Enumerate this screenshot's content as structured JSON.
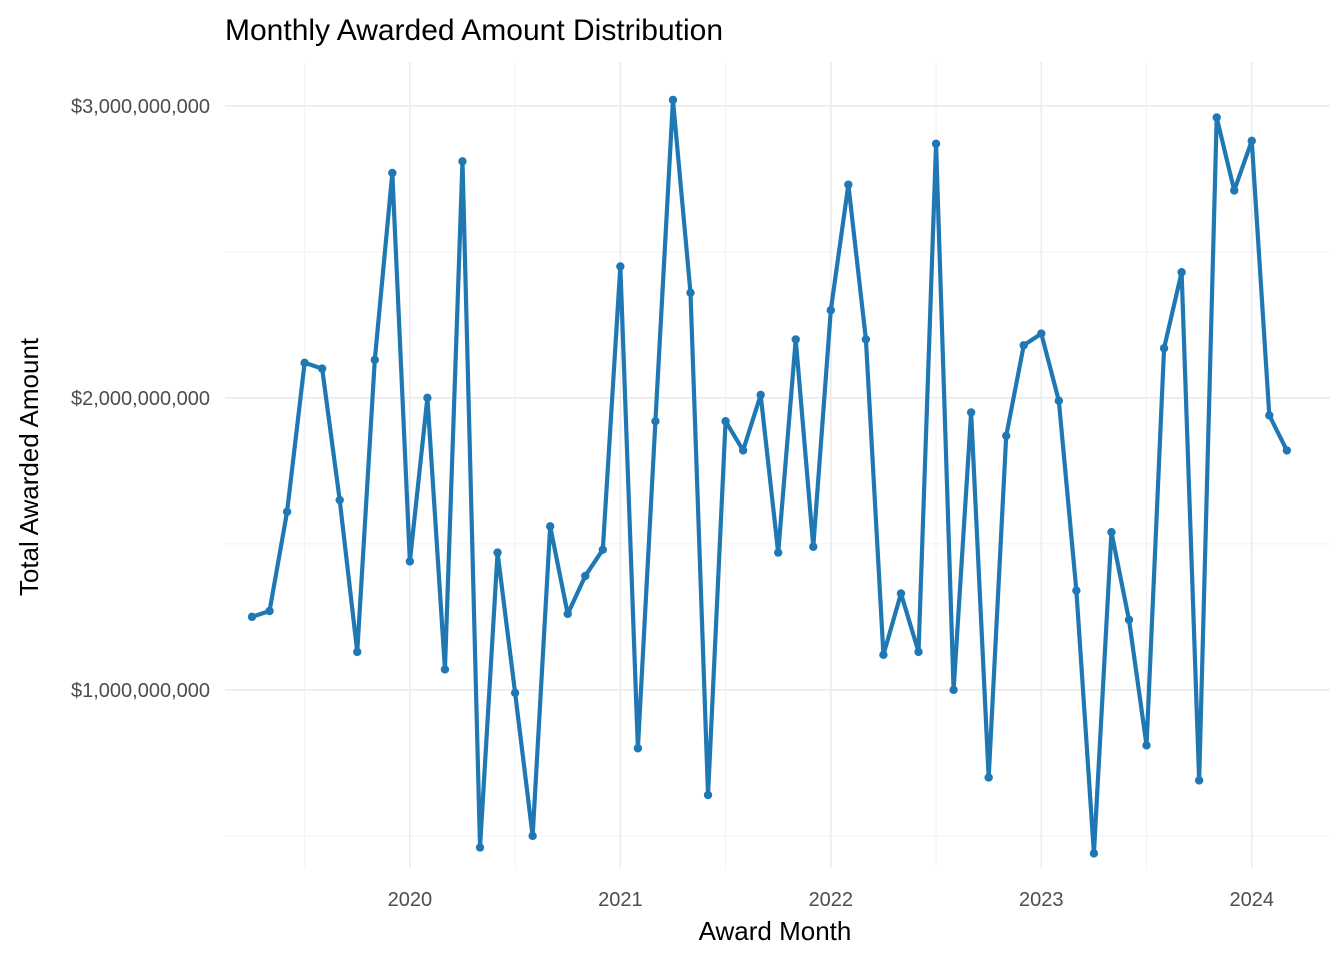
{
  "chart_data": {
    "type": "line",
    "title": "Monthly Awarded Amount Distribution",
    "xlabel": "Award Month",
    "ylabel": "Total Awarded Amount",
    "x_ticks": [
      "2020",
      "2021",
      "2022",
      "2023",
      "2024"
    ],
    "y_ticks": [
      "$1,000,000,000",
      "$2,000,000,000",
      "$3,000,000,000"
    ],
    "y_tick_values": [
      1000000000,
      2000000000,
      3000000000
    ],
    "ylim": [
      390000000,
      3150000000
    ],
    "xlim": [
      "2019-02-15",
      "2024-05-15"
    ],
    "grid": true,
    "legend": "none",
    "color": "#1f78b4",
    "series": [
      {
        "x": [
          "2019-04",
          "2019-05",
          "2019-06",
          "2019-07",
          "2019-08",
          "2019-09",
          "2019-10",
          "2019-11",
          "2019-12",
          "2020-01",
          "2020-02",
          "2020-03",
          "2020-04",
          "2020-05",
          "2020-06",
          "2020-07",
          "2020-08",
          "2020-09",
          "2020-10",
          "2020-11",
          "2020-12",
          "2021-01",
          "2021-02",
          "2021-03",
          "2021-04",
          "2021-05",
          "2021-06",
          "2021-07",
          "2021-08",
          "2021-09",
          "2021-10",
          "2021-11",
          "2021-12",
          "2022-01",
          "2022-02",
          "2022-03",
          "2022-04",
          "2022-05",
          "2022-06",
          "2022-07",
          "2022-08",
          "2022-09",
          "2022-10",
          "2022-11",
          "2022-12",
          "2023-01",
          "2023-02",
          "2023-03",
          "2023-04",
          "2023-05",
          "2023-06",
          "2023-07",
          "2023-08",
          "2023-09",
          "2023-10",
          "2023-11",
          "2023-12",
          "2024-01",
          "2024-02",
          "2024-03"
        ],
        "values": [
          1250000000,
          1270000000,
          1610000000,
          2120000000,
          2100000000,
          1650000000,
          1130000000,
          2130000000,
          2770000000,
          1440000000,
          2000000000,
          1070000000,
          2810000000,
          460000000,
          1470000000,
          990000000,
          500000000,
          1560000000,
          1260000000,
          1390000000,
          1480000000,
          2450000000,
          800000000,
          1920000000,
          3020000000,
          2360000000,
          640000000,
          1920000000,
          1820000000,
          2010000000,
          1470000000,
          2200000000,
          1490000000,
          2300000000,
          2730000000,
          2200000000,
          1120000000,
          1330000000,
          1130000000,
          2870000000,
          1000000000,
          1950000000,
          700000000,
          1870000000,
          2180000000,
          2220000000,
          1990000000,
          1340000000,
          440000000,
          1540000000,
          1240000000,
          810000000,
          2170000000,
          2430000000,
          690000000,
          2960000000,
          2710000000,
          2880000000,
          1940000000,
          1820000000
        ]
      }
    ]
  }
}
